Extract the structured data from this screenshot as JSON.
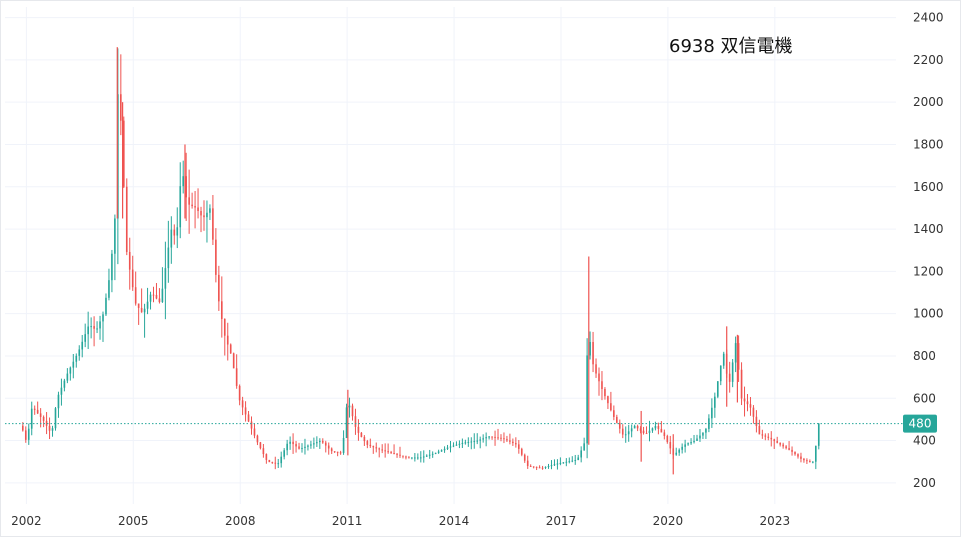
{
  "chart_data": {
    "type": "candlestick",
    "title": "6938  双信電機",
    "xlabel": "",
    "ylabel": "",
    "ylim": [
      100,
      2450
    ],
    "xlim": [
      2001.4,
      2026.4
    ],
    "grid": true,
    "y_ticks": [
      200,
      400,
      600,
      800,
      1000,
      1200,
      1400,
      1600,
      1800,
      2000,
      2200,
      2400
    ],
    "x_ticks": [
      {
        "label": "2002",
        "value": 2002
      },
      {
        "label": "2005",
        "value": 2005
      },
      {
        "label": "2008",
        "value": 2008
      },
      {
        "label": "2011",
        "value": 2011
      },
      {
        "label": "2014",
        "value": 2014
      },
      {
        "label": "2017",
        "value": 2017
      },
      {
        "label": "2020",
        "value": 2020
      },
      {
        "label": "2023",
        "value": 2023
      }
    ],
    "last_price": "480",
    "colors": {
      "up": "#26a69a",
      "down": "#ef5350",
      "price_line": "#26a69a"
    },
    "series_path": [
      [
        2001.9,
        470
      ],
      [
        2002.05,
        390
      ],
      [
        2002.2,
        560
      ],
      [
        2002.5,
        500
      ],
      [
        2002.75,
        430
      ],
      [
        2002.9,
        600
      ],
      [
        2003.2,
        720
      ],
      [
        2003.5,
        820
      ],
      [
        2003.8,
        950
      ],
      [
        2004.0,
        920
      ],
      [
        2004.2,
        1000
      ],
      [
        2004.4,
        1200
      ],
      [
        2004.55,
        1500
      ],
      [
        2004.6,
        2050
      ],
      [
        2004.7,
        1900
      ],
      [
        2004.85,
        1300
      ],
      [
        2005.1,
        1050
      ],
      [
        2005.3,
        1000
      ],
      [
        2005.55,
        1100
      ],
      [
        2005.8,
        1050
      ],
      [
        2006.1,
        1400
      ],
      [
        2006.25,
        1350
      ],
      [
        2006.4,
        1700
      ],
      [
        2006.55,
        1520
      ],
      [
        2006.8,
        1500
      ],
      [
        2007.0,
        1450
      ],
      [
        2007.2,
        1500
      ],
      [
        2007.4,
        1100
      ],
      [
        2007.6,
        900
      ],
      [
        2007.8,
        800
      ],
      [
        2008.0,
        600
      ],
      [
        2008.25,
        500
      ],
      [
        2008.5,
        400
      ],
      [
        2008.8,
        300
      ],
      [
        2009.1,
        290
      ],
      [
        2009.4,
        400
      ],
      [
        2009.7,
        360
      ],
      [
        2010.0,
        380
      ],
      [
        2010.3,
        400
      ],
      [
        2010.6,
        350
      ],
      [
        2010.9,
        340
      ],
      [
        2011.05,
        600
      ],
      [
        2011.3,
        450
      ],
      [
        2011.6,
        380
      ],
      [
        2011.9,
        360
      ],
      [
        2012.3,
        340
      ],
      [
        2012.7,
        320
      ],
      [
        2013.1,
        320
      ],
      [
        2013.5,
        340
      ],
      [
        2013.9,
        370
      ],
      [
        2014.3,
        390
      ],
      [
        2014.7,
        400
      ],
      [
        2015.0,
        420
      ],
      [
        2015.4,
        410
      ],
      [
        2015.8,
        380
      ],
      [
        2016.1,
        280
      ],
      [
        2016.5,
        270
      ],
      [
        2016.9,
        290
      ],
      [
        2017.2,
        300
      ],
      [
        2017.5,
        310
      ],
      [
        2017.7,
        390
      ],
      [
        2017.8,
        940
      ],
      [
        2017.95,
        750
      ],
      [
        2018.2,
        640
      ],
      [
        2018.5,
        520
      ],
      [
        2018.8,
        420
      ],
      [
        2019.1,
        470
      ],
      [
        2019.4,
        430
      ],
      [
        2019.7,
        470
      ],
      [
        2019.95,
        420
      ],
      [
        2020.2,
        330
      ],
      [
        2020.5,
        380
      ],
      [
        2020.8,
        400
      ],
      [
        2021.1,
        450
      ],
      [
        2021.35,
        600
      ],
      [
        2021.6,
        820
      ],
      [
        2021.75,
        650
      ],
      [
        2021.95,
        870
      ],
      [
        2022.1,
        600
      ],
      [
        2022.35,
        560
      ],
      [
        2022.6,
        430
      ],
      [
        2022.9,
        410
      ],
      [
        2023.2,
        380
      ],
      [
        2023.5,
        350
      ],
      [
        2023.8,
        310
      ],
      [
        2024.0,
        300
      ],
      [
        2024.15,
        300
      ],
      [
        2024.25,
        480
      ]
    ],
    "spikes": [
      {
        "x": 2004.55,
        "high": 2260,
        "low": 1450
      },
      {
        "x": 2004.7,
        "high": 2000,
        "low": 1450
      },
      {
        "x": 2006.45,
        "high": 1800,
        "low": 1450
      },
      {
        "x": 2011.02,
        "high": 640,
        "low": 330
      },
      {
        "x": 2017.78,
        "high": 1270,
        "low": 380
      },
      {
        "x": 2019.25,
        "high": 540,
        "low": 300
      },
      {
        "x": 2020.15,
        "high": 430,
        "low": 240
      },
      {
        "x": 2021.65,
        "high": 940,
        "low": 560
      },
      {
        "x": 2021.95,
        "high": 900,
        "low": 580
      }
    ]
  }
}
